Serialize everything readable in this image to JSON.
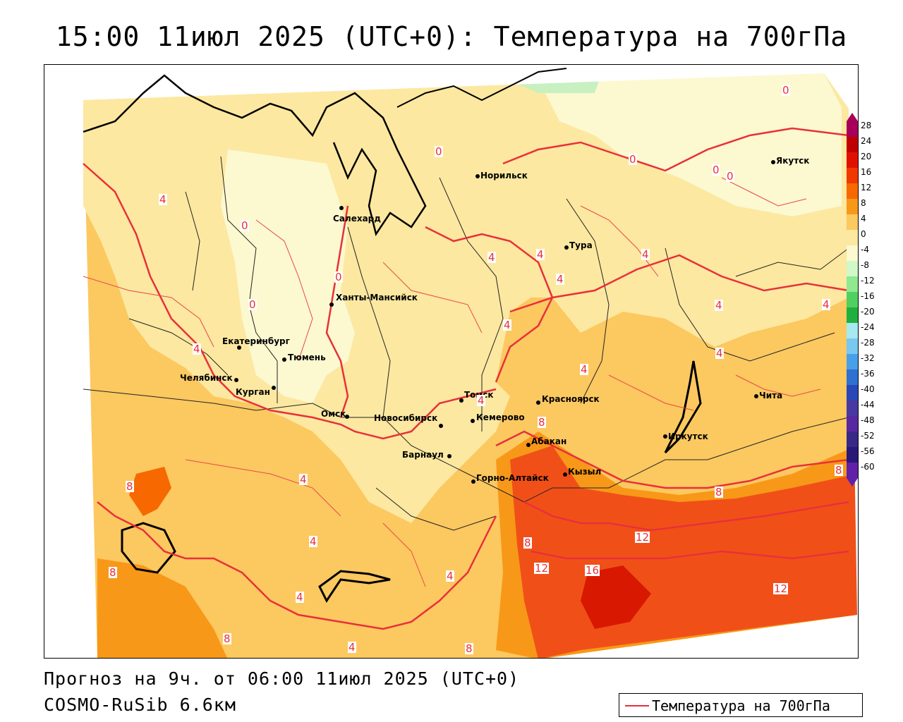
{
  "title": "15:00 11июл 2025 (UTC+0): Температура на 700гПа",
  "footer": {
    "forecast": "Прогноз на 9ч. от 06:00 11июл 2025 (UTC+0)",
    "model": "COSMO-RuSib 6.6км"
  },
  "legend": {
    "label": "Температура на 700гПа",
    "line_color": "#e8303a"
  },
  "colorbar": {
    "ticks": [
      "28",
      "24",
      "20",
      "16",
      "12",
      "8",
      "4",
      "0",
      "-4",
      "-8",
      "-12",
      "-16",
      "-20",
      "-24",
      "-28",
      "-32",
      "-36",
      "-40",
      "-44",
      "-48",
      "-52",
      "-56",
      "-60"
    ],
    "colors": [
      "#a8005a",
      "#c00000",
      "#e01000",
      "#f03800",
      "#f86800",
      "#f89818",
      "#fcc860",
      "#fce8a0",
      "#fcf8d0",
      "#d0f8c8",
      "#90e890",
      "#50d060",
      "#20b040",
      "#a8e8f0",
      "#78c8f0",
      "#48a0e8",
      "#3070d0",
      "#2848b8",
      "#4838a0",
      "#5828a0",
      "#382888",
      "#281878",
      "#6020a8"
    ]
  },
  "cities": [
    {
      "name": "Норильск"
    },
    {
      "name": "Якутск"
    },
    {
      "name": "Салехард"
    },
    {
      "name": "Тура"
    },
    {
      "name": "Ханты-Мансийск"
    },
    {
      "name": "Екатеринбург"
    },
    {
      "name": "Тюмень"
    },
    {
      "name": "Челябинск"
    },
    {
      "name": "Курган"
    },
    {
      "name": "Омск"
    },
    {
      "name": "Томск"
    },
    {
      "name": "Красноярск"
    },
    {
      "name": "Новосибирск"
    },
    {
      "name": "Кемерово"
    },
    {
      "name": "Абакан"
    },
    {
      "name": "Барнаул"
    },
    {
      "name": "Кызыл"
    },
    {
      "name": "Горно-Алтайск"
    },
    {
      "name": "Иркутск"
    },
    {
      "name": "Чита"
    }
  ],
  "isolines": [
    "0",
    "0",
    "0",
    "0",
    "0",
    "0",
    "0",
    "0",
    "4",
    "4",
    "4",
    "4",
    "4",
    "4",
    "4",
    "4",
    "4",
    "4",
    "4",
    "4",
    "4",
    "4",
    "4",
    "4",
    "4",
    "4",
    "8",
    "8",
    "8",
    "8",
    "8",
    "8",
    "8",
    "8",
    "12",
    "12",
    "12",
    "16"
  ]
}
